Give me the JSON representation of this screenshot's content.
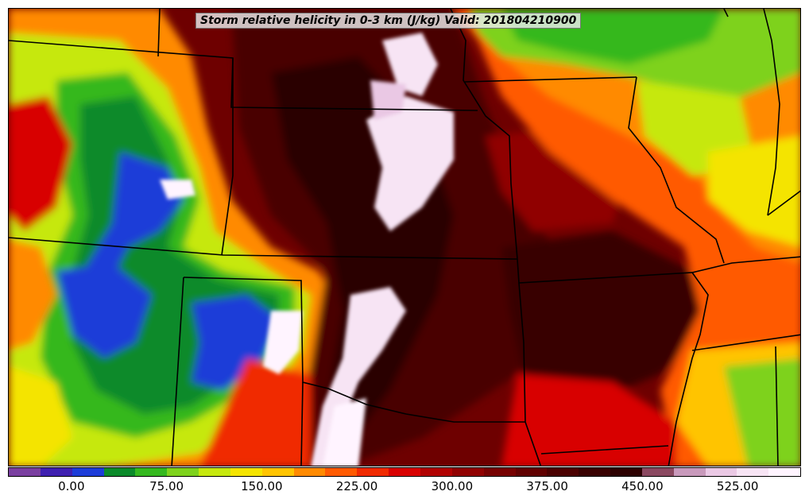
{
  "title": "Storm relative helicity in 0-3 km (J/kg) Valid: 201804210900",
  "colorbar": {
    "tick_labels": [
      "0.00",
      "75.00",
      "150.00",
      "225.00",
      "300.00",
      "375.00",
      "450.00",
      "525.00"
    ],
    "tick_values": [
      0,
      75,
      150,
      225,
      300,
      375,
      450,
      525
    ],
    "range": [
      -50,
      575
    ],
    "bin_width": 25,
    "colors": [
      "#7a3fa0",
      "#3e1fb0",
      "#1c3cd8",
      "#0a8a2a",
      "#34b81e",
      "#7ed21c",
      "#c6e80e",
      "#f4e400",
      "#ffc400",
      "#ff8a00",
      "#ff5a00",
      "#f02a00",
      "#d80000",
      "#b00000",
      "#900000",
      "#760000",
      "#600000",
      "#4a0000",
      "#380000",
      "#2c0000",
      "#8a4860",
      "#c899bb",
      "#eac8e4",
      "#f7e4f4",
      "#fff4ff"
    ]
  },
  "map": {
    "type": "filled-contour",
    "variable": "Storm relative helicity 0-3 km",
    "units": "J/kg",
    "valid_time": "201804210900",
    "region": "Central United States",
    "overlays": [
      "state-borders-icon"
    ]
  }
}
